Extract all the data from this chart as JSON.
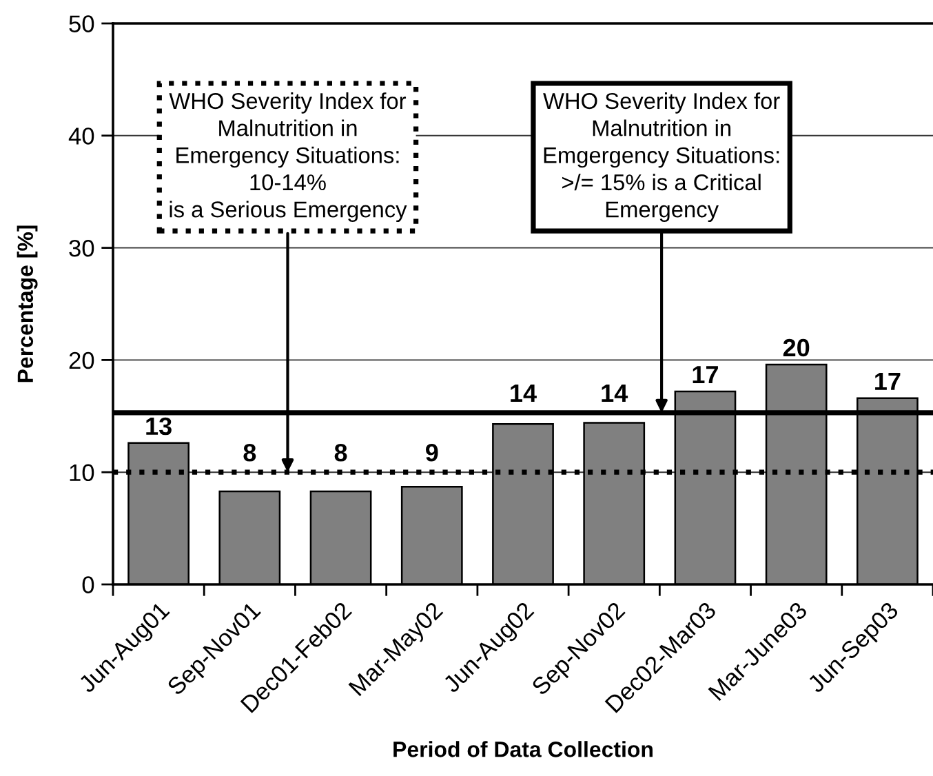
{
  "chart_data": {
    "type": "bar",
    "xlabel": "Period of Data Collection",
    "ylabel": "Percentage [%]",
    "categories": [
      "Jun-Aug01",
      "Sep-Nov01",
      "Dec01-Feb02",
      "Mar-May02",
      "Jun-Aug02",
      "Sep-Nov02",
      "Dec02-Mar03",
      "Mar-June03",
      "Jun-Sep03"
    ],
    "values": [
      12.6,
      8.3,
      8.3,
      8.7,
      14.3,
      14.4,
      17.2,
      19.6,
      16.6
    ],
    "value_labels": [
      "13",
      "8",
      "8",
      "9",
      "14",
      "14",
      "17",
      "20",
      "17"
    ],
    "color": "#808080",
    "ylim": [
      0,
      50
    ],
    "yticks": [
      0,
      10,
      20,
      30,
      40,
      50
    ],
    "grid": "y",
    "ref_lines": [
      {
        "axis": "y",
        "value": 10,
        "label": "WHO Severity Index for\nMalnutrition in\nEmergency Situations:\n10-14%\nis a Serious Emergency",
        "color": "#000000",
        "line_style": "dotted"
      },
      {
        "axis": "y",
        "value": 15.3,
        "label": "WHO Severity Index for\nMalnutrition in\nEmgergency Situations:\n>/= 15% is a Critical\nEmergency",
        "color": "#000000",
        "line_style": "solid"
      }
    ]
  }
}
